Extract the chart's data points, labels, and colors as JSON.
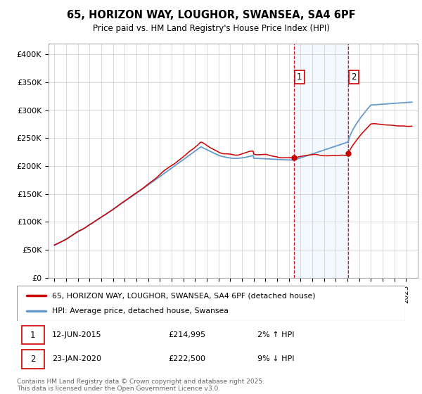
{
  "title": "65, HORIZON WAY, LOUGHOR, SWANSEA, SA4 6PF",
  "subtitle": "Price paid vs. HM Land Registry's House Price Index (HPI)",
  "ylabel_ticks": [
    "£0",
    "£50K",
    "£100K",
    "£150K",
    "£200K",
    "£250K",
    "£300K",
    "£350K",
    "£400K"
  ],
  "ytick_vals": [
    0,
    50000,
    100000,
    150000,
    200000,
    250000,
    300000,
    350000,
    400000
  ],
  "ylim": [
    0,
    420000
  ],
  "purchase1_date": "12-JUN-2015",
  "purchase1_price": 214995,
  "purchase2_date": "23-JAN-2020",
  "purchase2_price": 222500,
  "purchase1_pct": "2% ↑ HPI",
  "purchase2_pct": "9% ↓ HPI",
  "legend_line1": "65, HORIZON WAY, LOUGHOR, SWANSEA, SA4 6PF (detached house)",
  "legend_line2": "HPI: Average price, detached house, Swansea",
  "footer": "Contains HM Land Registry data © Crown copyright and database right 2025.\nThis data is licensed under the Open Government Licence v3.0.",
  "line_color_red": "#cc0000",
  "line_color_blue": "#6699cc",
  "shade_color": "#ddeeff",
  "vline_color": "#cc0000",
  "purchase1_x": 2015.44,
  "purchase2_x": 2020.07,
  "xlim_left": 1994.5,
  "xlim_right": 2026.0
}
